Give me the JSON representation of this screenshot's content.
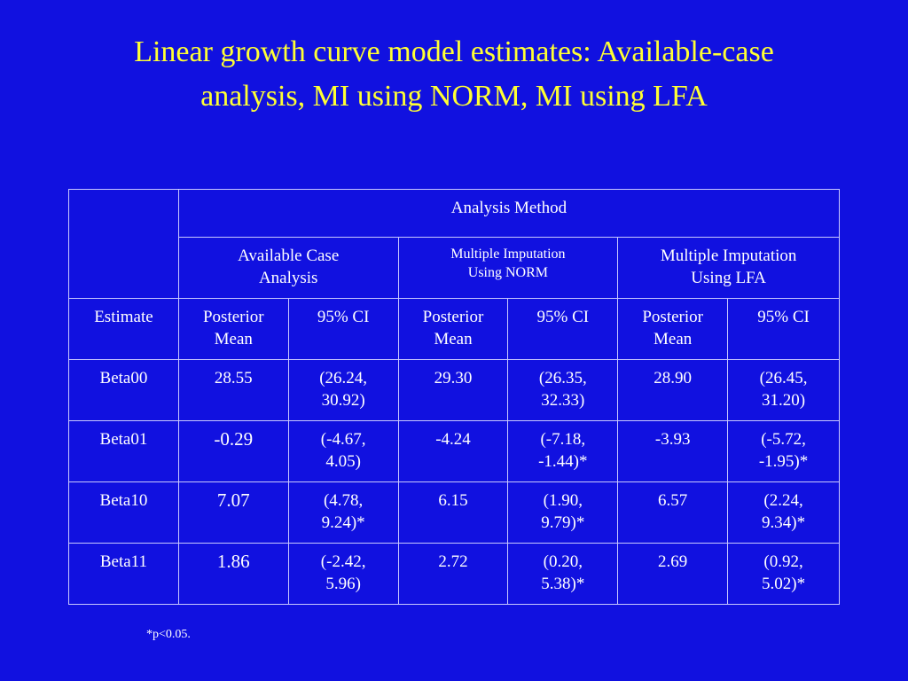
{
  "title": {
    "line1": "Linear growth curve model estimates: Available-case",
    "line2": "analysis, MI using NORM, MI using LFA"
  },
  "table": {
    "group_header": "Analysis Method",
    "methods": [
      {
        "line1": "Available Case",
        "line2": "Analysis"
      },
      {
        "line1": "Multiple Imputation",
        "line2": "Using NORM"
      },
      {
        "line1": "Multiple Imputation",
        "line2": "Using LFA"
      }
    ],
    "columns": {
      "estimate": "Estimate",
      "mean_line1": "Posterior",
      "mean_line2": "Mean",
      "ci": "95% CI"
    },
    "rows": [
      {
        "name": "Beta00",
        "cells": [
          {
            "mean": "28.55",
            "ci1": "(26.24,",
            "ci2": "30.92)"
          },
          {
            "mean": "29.30",
            "ci1": "(26.35,",
            "ci2": "32.33)"
          },
          {
            "mean": "28.90",
            "ci1": "(26.45,",
            "ci2": "31.20)"
          }
        ]
      },
      {
        "name": "Beta01",
        "cells": [
          {
            "mean": "-0.29",
            "ci1": "(-4.67,",
            "ci2": "4.05)"
          },
          {
            "mean": "-4.24",
            "ci1": "(-7.18,",
            "ci2": "-1.44)*"
          },
          {
            "mean": "-3.93",
            "ci1": "(-5.72,",
            "ci2": "-1.95)*"
          }
        ]
      },
      {
        "name": "Beta10",
        "cells": [
          {
            "mean": "7.07",
            "ci1": "(4.78,",
            "ci2": "9.24)*"
          },
          {
            "mean": "6.15",
            "ci1": "(1.90,",
            "ci2": "9.79)*"
          },
          {
            "mean": "6.57",
            "ci1": "(2.24,",
            "ci2": "9.34)*"
          }
        ]
      },
      {
        "name": "Beta11",
        "cells": [
          {
            "mean": "1.86",
            "ci1": "(-2.42,",
            "ci2": "5.96)"
          },
          {
            "mean": "2.72",
            "ci1": "(0.20,",
            "ci2": "5.38)*"
          },
          {
            "mean": "2.69",
            "ci1": "(0.92,",
            "ci2": "5.02)*"
          }
        ]
      }
    ]
  },
  "footnote": "*p<0.05.",
  "colors": {
    "background": "#1111e0",
    "title": "#ffff33",
    "text": "#ffffff"
  }
}
